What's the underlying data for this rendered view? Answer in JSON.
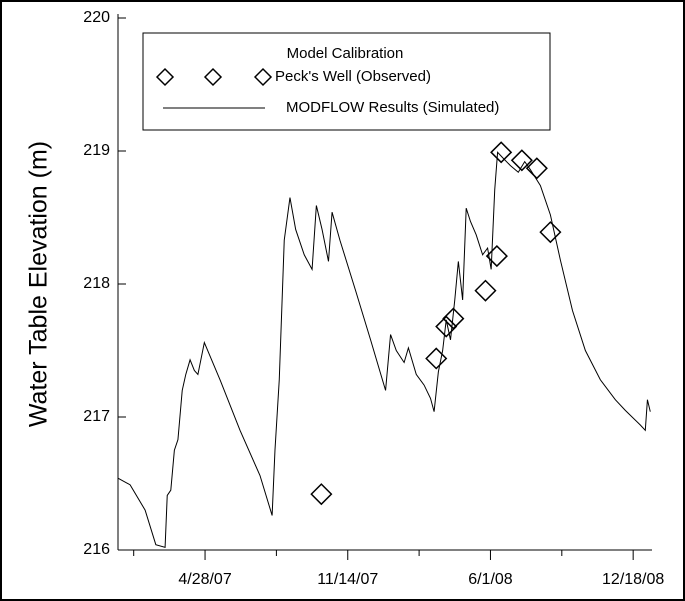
{
  "chart_data": {
    "type": "line",
    "ylabel": "Water Table Elevation (m)",
    "legend_title": "Model Calibration",
    "legend_position": "top",
    "xlim": [
      "2006-12-27",
      "2009-01-12"
    ],
    "xticks": [
      {
        "value": "2007-04-28",
        "label": "4/28/07"
      },
      {
        "value": "2007-11-14",
        "label": "11/14/07"
      },
      {
        "value": "2008-06-01",
        "label": "6/1/08"
      },
      {
        "value": "2008-12-18",
        "label": "12/18/08"
      }
    ],
    "xminorticks": [
      "2007-01-18",
      "2007-08-06",
      "2008-02-22",
      "2008-09-09"
    ],
    "ylim": [
      216,
      220
    ],
    "yticks": [
      216,
      217,
      218,
      219,
      220
    ],
    "series": [
      {
        "name": "Peck's Well (Observed)",
        "type": "scatter",
        "color": "#000000",
        "x": [
          "2007-10-08",
          "2008-03-17",
          "2008-03-31",
          "2008-04-10",
          "2008-05-25",
          "2008-06-10",
          "2008-06-16",
          "2008-07-15",
          "2008-08-05",
          "2008-08-24"
        ],
        "values": [
          216.42,
          217.44,
          217.68,
          217.74,
          217.95,
          218.21,
          218.99,
          218.93,
          218.87,
          218.39
        ]
      },
      {
        "name": "MODFLOW Results (Simulated)",
        "type": "line",
        "color": "#000000",
        "x": [
          "2006-12-27",
          "2007-01-13",
          "2007-02-03",
          "2007-02-18",
          "2007-03-03",
          "2007-03-06",
          "2007-03-11",
          "2007-03-16",
          "2007-03-21",
          "2007-03-27",
          "2007-04-01",
          "2007-04-07",
          "2007-04-13",
          "2007-04-18",
          "2007-04-27",
          "2007-05-19",
          "2007-06-16",
          "2007-07-14",
          "2007-07-31",
          "2007-08-04",
          "2007-08-10",
          "2007-08-17",
          "2007-08-25",
          "2007-09-02",
          "2007-09-14",
          "2007-09-25",
          "2007-10-01",
          "2007-10-09",
          "2007-10-18",
          "2007-10-23",
          "2007-11-03",
          "2007-11-25",
          "2007-12-16",
          "2008-01-06",
          "2008-01-13",
          "2008-01-21",
          "2008-02-01",
          "2008-02-07",
          "2008-02-18",
          "2008-02-29",
          "2008-03-09",
          "2008-03-14",
          "2008-03-20",
          "2008-03-26",
          "2008-03-31",
          "2008-04-06",
          "2008-04-12",
          "2008-04-17",
          "2008-04-23",
          "2008-04-28",
          "2008-05-04",
          "2008-05-12",
          "2008-05-21",
          "2008-05-28",
          "2008-06-02",
          "2008-06-07",
          "2008-06-11",
          "2008-06-18",
          "2008-06-29",
          "2008-07-10",
          "2008-07-19",
          "2008-07-27",
          "2008-08-10",
          "2008-08-24",
          "2008-09-07",
          "2008-09-24",
          "2008-10-12",
          "2008-11-02",
          "2008-11-23",
          "2008-12-07",
          "2008-12-28",
          "2009-01-04",
          "2009-01-07",
          "2009-01-11"
        ],
        "values": [
          216.54,
          216.49,
          216.3,
          216.04,
          216.02,
          216.41,
          216.45,
          216.75,
          216.83,
          217.2,
          217.32,
          217.43,
          217.35,
          217.32,
          217.56,
          217.28,
          216.9,
          216.56,
          216.26,
          216.75,
          217.28,
          218.33,
          218.65,
          218.41,
          218.22,
          218.11,
          218.59,
          218.41,
          218.17,
          218.54,
          218.33,
          217.95,
          217.58,
          217.2,
          217.62,
          217.5,
          217.41,
          217.52,
          217.32,
          217.24,
          217.14,
          217.04,
          217.34,
          217.5,
          217.73,
          217.58,
          217.88,
          218.17,
          217.88,
          218.57,
          218.47,
          218.37,
          218.22,
          218.27,
          218.11,
          218.71,
          218.99,
          218.95,
          218.89,
          218.84,
          218.92,
          218.86,
          218.74,
          218.52,
          218.18,
          217.8,
          217.5,
          217.28,
          217.13,
          217.05,
          216.94,
          216.9,
          217.13,
          217.04
        ]
      }
    ]
  }
}
